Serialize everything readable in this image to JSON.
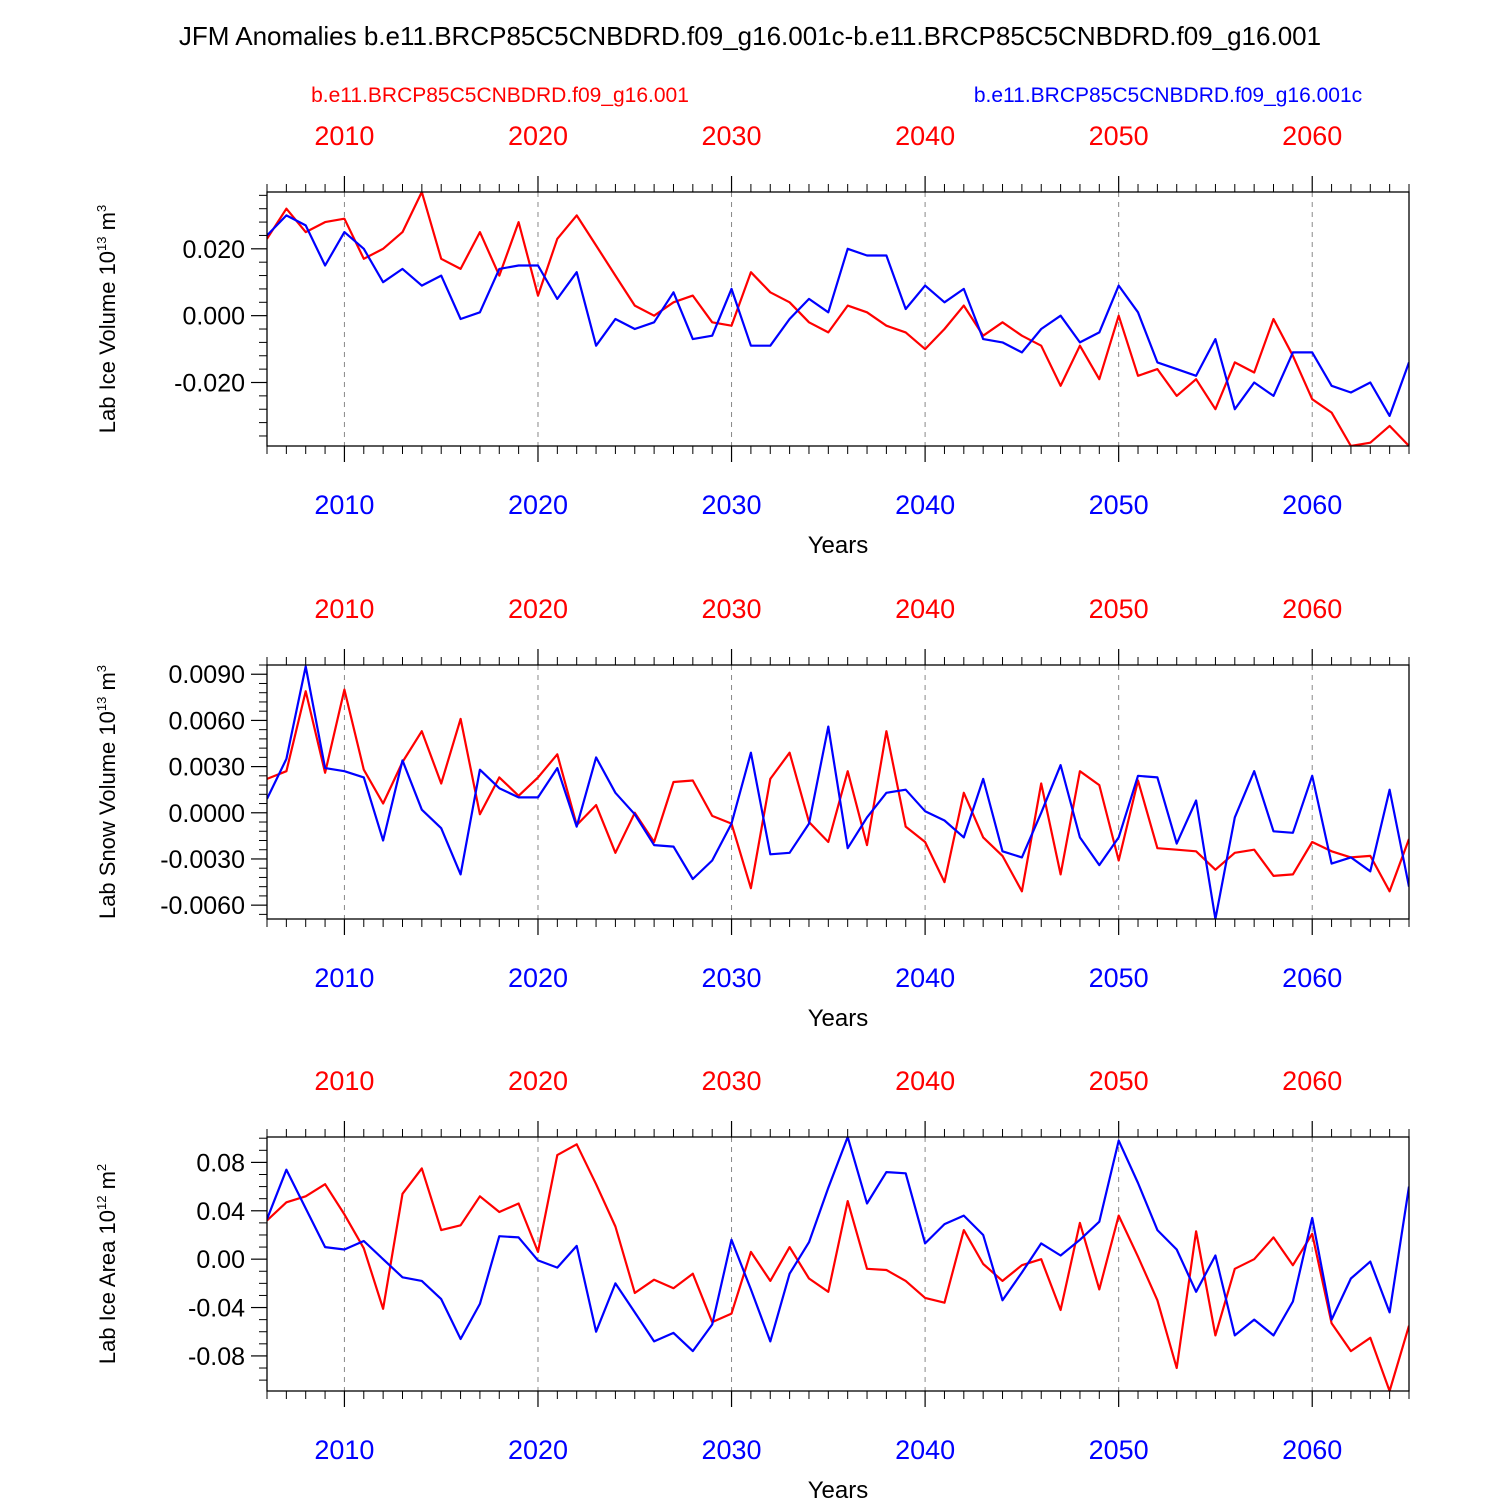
{
  "figure": {
    "title": "JFM Anomalies b.e11.BRCP85C5CNBDRD.f09_g16.001c-b.e11.BRCP85C5CNBDRD.f09_g16.001",
    "legend_red": "b.e11.BRCP85C5CNBDRD.f09_g16.001",
    "legend_blue": "b.e11.BRCP85C5CNBDRD.f09_g16.001c",
    "colors": {
      "red": "#ff0000",
      "blue": "#0000ff",
      "axis": "#000000",
      "grid": "#888888"
    }
  },
  "chart_data": [
    {
      "type": "line",
      "ylabel": "Lab Ice Volume 10",
      "ylabel_exp": "13",
      "ylabel_unit": " m",
      "ylabel_unit_exp": "3",
      "xlabel": "Years",
      "xlim": [
        2006,
        2065
      ],
      "ylim": [
        -0.039,
        0.037
      ],
      "ytick_values": [
        -0.02,
        0.0,
        0.02
      ],
      "ytick_labels": [
        "-0.020",
        "0.000",
        "0.020"
      ],
      "yminor_step": 0.004,
      "xtick_values": [
        2010,
        2020,
        2030,
        2040,
        2050,
        2060
      ],
      "xtick_labels": [
        "2010",
        "2020",
        "2030",
        "2040",
        "2050",
        "2060"
      ],
      "x": [
        2006,
        2007,
        2008,
        2009,
        2010,
        2011,
        2012,
        2013,
        2014,
        2015,
        2016,
        2017,
        2018,
        2019,
        2020,
        2021,
        2022,
        2023,
        2024,
        2025,
        2026,
        2027,
        2028,
        2029,
        2030,
        2031,
        2032,
        2033,
        2034,
        2035,
        2036,
        2037,
        2038,
        2039,
        2040,
        2041,
        2042,
        2043,
        2044,
        2045,
        2046,
        2047,
        2048,
        2049,
        2050,
        2051,
        2052,
        2053,
        2054,
        2055,
        2056,
        2057,
        2058,
        2059,
        2060,
        2061,
        2062,
        2063,
        2064,
        2065
      ],
      "series": [
        {
          "name": "b.e11.BRCP85C5CNBDRD.f09_g16.001",
          "color": "red",
          "values": [
            0.023,
            0.032,
            0.025,
            0.028,
            0.029,
            0.017,
            0.02,
            0.025,
            0.037,
            0.017,
            0.014,
            0.025,
            0.012,
            0.028,
            0.006,
            0.023,
            0.03,
            0.021,
            0.012,
            0.003,
            0.0,
            0.004,
            0.006,
            -0.002,
            -0.003,
            0.013,
            0.007,
            0.004,
            -0.002,
            -0.005,
            0.003,
            0.001,
            -0.003,
            -0.005,
            -0.01,
            -0.004,
            0.003,
            -0.006,
            -0.002,
            -0.006,
            -0.009,
            -0.021,
            -0.009,
            -0.019,
            0.0,
            -0.018,
            -0.016,
            -0.024,
            -0.019,
            -0.028,
            -0.014,
            -0.017,
            -0.001,
            -0.012,
            -0.025,
            -0.029,
            -0.039,
            -0.038,
            -0.033,
            -0.039
          ]
        },
        {
          "name": "b.e11.BRCP85C5CNBDRD.f09_g16.001c",
          "color": "blue",
          "values": [
            0.024,
            0.03,
            0.027,
            0.015,
            0.025,
            0.02,
            0.01,
            0.014,
            0.009,
            0.012,
            -0.001,
            0.001,
            0.014,
            0.015,
            0.015,
            0.005,
            0.013,
            -0.009,
            -0.001,
            -0.004,
            -0.002,
            0.007,
            -0.007,
            -0.006,
            0.008,
            -0.009,
            -0.009,
            -0.001,
            0.005,
            0.001,
            0.02,
            0.018,
            0.018,
            0.002,
            0.009,
            0.004,
            0.008,
            -0.007,
            -0.008,
            -0.011,
            -0.004,
            0.0,
            -0.008,
            -0.005,
            0.009,
            0.001,
            -0.014,
            -0.016,
            -0.018,
            -0.007,
            -0.028,
            -0.02,
            -0.024,
            -0.011,
            -0.011,
            -0.021,
            -0.023,
            -0.02,
            -0.03,
            -0.014
          ]
        }
      ]
    },
    {
      "type": "line",
      "ylabel": "Lab Snow Volume 10",
      "ylabel_exp": "13",
      "ylabel_unit": " m",
      "ylabel_unit_exp": "3",
      "xlabel": "Years",
      "xlim": [
        2006,
        2065
      ],
      "ylim": [
        -0.0069,
        0.0096
      ],
      "ytick_values": [
        -0.006,
        -0.003,
        0.0,
        0.003,
        0.006,
        0.009
      ],
      "ytick_labels": [
        "-0.0060",
        "-0.0030",
        "0.0000",
        "0.0030",
        "0.0060",
        "0.0090"
      ],
      "yminor_step": 0.0006,
      "xtick_values": [
        2010,
        2020,
        2030,
        2040,
        2050,
        2060
      ],
      "xtick_labels": [
        "2010",
        "2020",
        "2030",
        "2040",
        "2050",
        "2060"
      ],
      "x": [
        2006,
        2007,
        2008,
        2009,
        2010,
        2011,
        2012,
        2013,
        2014,
        2015,
        2016,
        2017,
        2018,
        2019,
        2020,
        2021,
        2022,
        2023,
        2024,
        2025,
        2026,
        2027,
        2028,
        2029,
        2030,
        2031,
        2032,
        2033,
        2034,
        2035,
        2036,
        2037,
        2038,
        2039,
        2040,
        2041,
        2042,
        2043,
        2044,
        2045,
        2046,
        2047,
        2048,
        2049,
        2050,
        2051,
        2052,
        2053,
        2054,
        2055,
        2056,
        2057,
        2058,
        2059,
        2060,
        2061,
        2062,
        2063,
        2064,
        2065
      ],
      "series": [
        {
          "name": "b.e11.BRCP85C5CNBDRD.f09_g16.001",
          "color": "red",
          "values": [
            0.0022,
            0.0027,
            0.0079,
            0.0026,
            0.008,
            0.0028,
            0.0006,
            0.0033,
            0.0053,
            0.0019,
            0.0061,
            -0.0001,
            0.0023,
            0.0011,
            0.0023,
            0.0038,
            -0.0008,
            0.0005,
            -0.0026,
            0.0,
            -0.0019,
            0.002,
            0.0021,
            -0.0002,
            -0.0007,
            -0.0049,
            0.0022,
            0.0039,
            -0.0006,
            -0.0019,
            0.0027,
            -0.0021,
            0.0053,
            -0.0009,
            -0.0019,
            -0.0045,
            0.0013,
            -0.0016,
            -0.0028,
            -0.0051,
            0.0019,
            -0.004,
            0.0027,
            0.0018,
            -0.0031,
            0.0021,
            -0.0023,
            -0.0024,
            -0.0025,
            -0.0037,
            -0.0026,
            -0.0024,
            -0.0041,
            -0.004,
            -0.0019,
            -0.0025,
            -0.0029,
            -0.0028,
            -0.0051,
            -0.0017
          ]
        },
        {
          "name": "b.e11.BRCP85C5CNBDRD.f09_g16.001c",
          "color": "blue",
          "values": [
            0.0009,
            0.0035,
            0.0095,
            0.0029,
            0.0027,
            0.0023,
            -0.0018,
            0.0034,
            0.0002,
            -0.001,
            -0.004,
            0.0028,
            0.0016,
            0.001,
            0.001,
            0.0029,
            -0.0009,
            0.0036,
            0.0013,
            -0.0001,
            -0.0021,
            -0.0022,
            -0.0043,
            -0.0031,
            -0.0007,
            0.0039,
            -0.0027,
            -0.0026,
            -0.0007,
            0.0056,
            -0.0023,
            -0.0003,
            0.0013,
            0.0015,
            0.0001,
            -0.0005,
            -0.0016,
            0.0022,
            -0.0025,
            -0.0029,
            0.0,
            0.0031,
            -0.0016,
            -0.0034,
            -0.0016,
            0.0024,
            0.0023,
            -0.002,
            0.0008,
            -0.0069,
            -0.0003,
            0.0027,
            -0.0012,
            -0.0013,
            0.0024,
            -0.0033,
            -0.0029,
            -0.0038,
            0.0015,
            -0.0048
          ]
        }
      ]
    },
    {
      "type": "line",
      "ylabel": "Lab Ice Area 10",
      "ylabel_exp": "12",
      "ylabel_unit": " m",
      "ylabel_unit_exp": "2",
      "xlabel": "Years",
      "xlim": [
        2006,
        2065
      ],
      "ylim": [
        -0.109,
        0.101
      ],
      "ytick_values": [
        -0.08,
        -0.04,
        0.0,
        0.04,
        0.08
      ],
      "ytick_labels": [
        "-0.08",
        "-0.04",
        "0.00",
        "0.04",
        "0.08"
      ],
      "yminor_step": 0.01,
      "xtick_values": [
        2010,
        2020,
        2030,
        2040,
        2050,
        2060
      ],
      "xtick_labels": [
        "2010",
        "2020",
        "2030",
        "2040",
        "2050",
        "2060"
      ],
      "x": [
        2006,
        2007,
        2008,
        2009,
        2010,
        2011,
        2012,
        2013,
        2014,
        2015,
        2016,
        2017,
        2018,
        2019,
        2020,
        2021,
        2022,
        2023,
        2024,
        2025,
        2026,
        2027,
        2028,
        2029,
        2030,
        2031,
        2032,
        2033,
        2034,
        2035,
        2036,
        2037,
        2038,
        2039,
        2040,
        2041,
        2042,
        2043,
        2044,
        2045,
        2046,
        2047,
        2048,
        2049,
        2050,
        2051,
        2052,
        2053,
        2054,
        2055,
        2056,
        2057,
        2058,
        2059,
        2060,
        2061,
        2062,
        2063,
        2064,
        2065
      ],
      "series": [
        {
          "name": "b.e11.BRCP85C5CNBDRD.f09_g16.001",
          "color": "red",
          "values": [
            0.032,
            0.047,
            0.052,
            0.062,
            0.037,
            0.009,
            -0.041,
            0.054,
            0.075,
            0.024,
            0.028,
            0.052,
            0.039,
            0.046,
            0.006,
            0.086,
            0.095,
            0.062,
            0.027,
            -0.028,
            -0.017,
            -0.024,
            -0.012,
            -0.052,
            -0.045,
            0.006,
            -0.018,
            0.01,
            -0.016,
            -0.027,
            0.048,
            -0.008,
            -0.009,
            -0.018,
            -0.032,
            -0.036,
            0.024,
            -0.004,
            -0.018,
            -0.005,
            0.0,
            -0.042,
            0.03,
            -0.025,
            0.036,
            0.002,
            -0.034,
            -0.09,
            0.023,
            -0.063,
            -0.008,
            0.0,
            0.018,
            -0.005,
            0.021,
            -0.053,
            -0.076,
            -0.065,
            -0.109,
            -0.055
          ]
        },
        {
          "name": "b.e11.BRCP85C5CNBDRD.f09_g16.001c",
          "color": "blue",
          "values": [
            0.033,
            0.074,
            0.042,
            0.01,
            0.008,
            0.015,
            0.0,
            -0.015,
            -0.018,
            -0.033,
            -0.066,
            -0.037,
            0.019,
            0.018,
            -0.001,
            -0.007,
            0.011,
            -0.06,
            -0.02,
            -0.044,
            -0.068,
            -0.061,
            -0.076,
            -0.054,
            0.016,
            -0.025,
            -0.068,
            -0.012,
            0.014,
            0.059,
            0.101,
            0.046,
            0.072,
            0.071,
            0.013,
            0.029,
            0.036,
            0.02,
            -0.034,
            -0.011,
            0.013,
            0.003,
            0.016,
            0.031,
            0.098,
            0.063,
            0.024,
            0.008,
            -0.027,
            0.003,
            -0.063,
            -0.05,
            -0.063,
            -0.035,
            0.034,
            -0.05,
            -0.016,
            -0.002,
            -0.044,
            0.06
          ]
        }
      ]
    }
  ]
}
